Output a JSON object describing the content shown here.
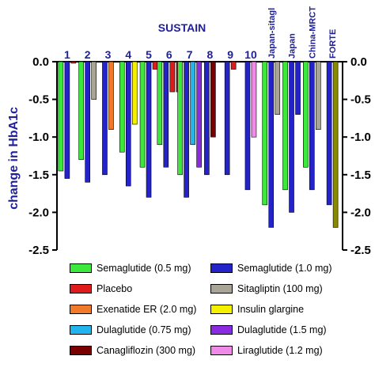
{
  "chart_data": {
    "type": "bar",
    "title": "SUSTAIN",
    "ylabel": "change in HbA1c",
    "ylim": [
      -2.5,
      0.0
    ],
    "yticks": [
      "0.0",
      "-0.5",
      "-1.0",
      "-1.5",
      "-2.0",
      "-2.5"
    ],
    "ytick_values": [
      0.0,
      -0.5,
      -1.0,
      -1.5,
      -2.0,
      -2.5
    ],
    "categories": [
      "1",
      "2",
      "3",
      "4",
      "5",
      "6",
      "7",
      "8",
      "9",
      "10",
      "Japan-sitagl",
      "Japan",
      "China-MRCT",
      "FORTE"
    ],
    "series_colors": {
      "Semaglutide (0.5 mg)": "#3ce83c",
      "Semaglutide (1.0 mg)": "#2323c8",
      "Placebo": "#e01b1b",
      "Sitagliptin (100 mg)": "#a8a496",
      "Exenatide ER (2.0 mg)": "#ef7a2a",
      "Insulin glargine": "#f4f000",
      "Dulaglutide (0.75 mg)": "#22b4ec",
      "Dulaglutide (1.5 mg)": "#8a2be2",
      "Canagliflozin (300 mg)": "#7a0000",
      "Liraglutide (1.2 mg)": "#f08ae8",
      "Semaglutide (2.0 mg)": "#8a8a00"
    },
    "groups": [
      {
        "category": "1",
        "bars": [
          {
            "series": "Semaglutide (0.5 mg)",
            "value": -1.45
          },
          {
            "series": "Semaglutide (1.0 mg)",
            "value": -1.55
          },
          {
            "series": "Placebo",
            "value": -0.02
          }
        ]
      },
      {
        "category": "2",
        "bars": [
          {
            "series": "Semaglutide (0.5 mg)",
            "value": -1.3
          },
          {
            "series": "Semaglutide (1.0 mg)",
            "value": -1.6
          },
          {
            "series": "Sitagliptin (100 mg)",
            "value": -0.5
          }
        ]
      },
      {
        "category": "3",
        "bars": [
          {
            "series": "Semaglutide (1.0 mg)",
            "value": -1.5
          },
          {
            "series": "Exenatide ER (2.0 mg)",
            "value": -0.9
          }
        ]
      },
      {
        "category": "4",
        "bars": [
          {
            "series": "Semaglutide (0.5 mg)",
            "value": -1.2
          },
          {
            "series": "Semaglutide (1.0 mg)",
            "value": -1.65
          },
          {
            "series": "Insulin glargine",
            "value": -0.83
          }
        ]
      },
      {
        "category": "5",
        "bars": [
          {
            "series": "Semaglutide (0.5 mg)",
            "value": -1.4
          },
          {
            "series": "Semaglutide (1.0 mg)",
            "value": -1.8
          },
          {
            "series": "Placebo",
            "value": -0.1
          }
        ]
      },
      {
        "category": "6",
        "bars": [
          {
            "series": "Semaglutide (0.5 mg)",
            "value": -1.1
          },
          {
            "series": "Semaglutide (1.0 mg)",
            "value": -1.4
          },
          {
            "series": "Placebo",
            "value": -0.4
          },
          {
            "series": "Placebo",
            "value": -0.4
          }
        ]
      },
      {
        "category": "7",
        "bars": [
          {
            "series": "Semaglutide (0.5 mg)",
            "value": -1.5
          },
          {
            "series": "Semaglutide (1.0 mg)",
            "value": -1.8
          },
          {
            "series": "Dulaglutide (0.75 mg)",
            "value": -1.1
          },
          {
            "series": "Dulaglutide (1.5 mg)",
            "value": -1.4
          }
        ]
      },
      {
        "category": "8",
        "bars": [
          {
            "series": "Semaglutide (1.0 mg)",
            "value": -1.5
          },
          {
            "series": "Canagliflozin (300 mg)",
            "value": -1.0
          }
        ]
      },
      {
        "category": "9",
        "bars": [
          {
            "series": "Semaglutide (1.0 mg)",
            "value": -1.5
          },
          {
            "series": "Placebo",
            "value": -0.1
          }
        ]
      },
      {
        "category": "10",
        "bars": [
          {
            "series": "Semaglutide (1.0 mg)",
            "value": -1.7
          },
          {
            "series": "Liraglutide (1.2 mg)",
            "value": -1.0
          }
        ]
      },
      {
        "category": "Japan-sitagl",
        "bars": [
          {
            "series": "Semaglutide (0.5 mg)",
            "value": -1.9
          },
          {
            "series": "Semaglutide (1.0 mg)",
            "value": -2.2
          },
          {
            "series": "Sitagliptin (100 mg)",
            "value": -0.7
          }
        ]
      },
      {
        "category": "Japan",
        "bars": [
          {
            "series": "Semaglutide (0.5 mg)",
            "value": -1.7
          },
          {
            "series": "Semaglutide (1.0 mg)",
            "value": -2.0
          },
          {
            "series": "Semaglutide (1.0 mg)",
            "value": -0.7
          }
        ]
      },
      {
        "category": "China-MRCT",
        "bars": [
          {
            "series": "Semaglutide (0.5 mg)",
            "value": -1.4
          },
          {
            "series": "Semaglutide (1.0 mg)",
            "value": -1.7
          },
          {
            "series": "Sitagliptin (100 mg)",
            "value": -0.9
          }
        ]
      },
      {
        "category": "FORTE",
        "bars": [
          {
            "series": "Semaglutide (1.0 mg)",
            "value": -1.9
          },
          {
            "series": "Semaglutide (2.0 mg)",
            "value": -2.2
          }
        ]
      }
    ],
    "legend": [
      {
        "label": "Semaglutide (0.5 mg)",
        "color": "#3ce83c"
      },
      {
        "label": "Semaglutide (1.0 mg)",
        "color": "#2323c8"
      },
      {
        "label": "Placebo",
        "color": "#e01b1b"
      },
      {
        "label": "Sitagliptin (100 mg)",
        "color": "#a8a496"
      },
      {
        "label": "Exenatide ER (2.0 mg)",
        "color": "#ef7a2a"
      },
      {
        "label": "Insulin glargine",
        "color": "#f4f000"
      },
      {
        "label": "Dulaglutide (0.75 mg)",
        "color": "#22b4ec"
      },
      {
        "label": "Dulaglutide (1.5 mg)",
        "color": "#8a2be2"
      },
      {
        "label": "Canagliflozin (300 mg)",
        "color": "#7a0000"
      },
      {
        "label": "Liraglutide (1.2 mg)",
        "color": "#f08ae8"
      }
    ],
    "legend_placement": "bottom",
    "grid": false
  }
}
